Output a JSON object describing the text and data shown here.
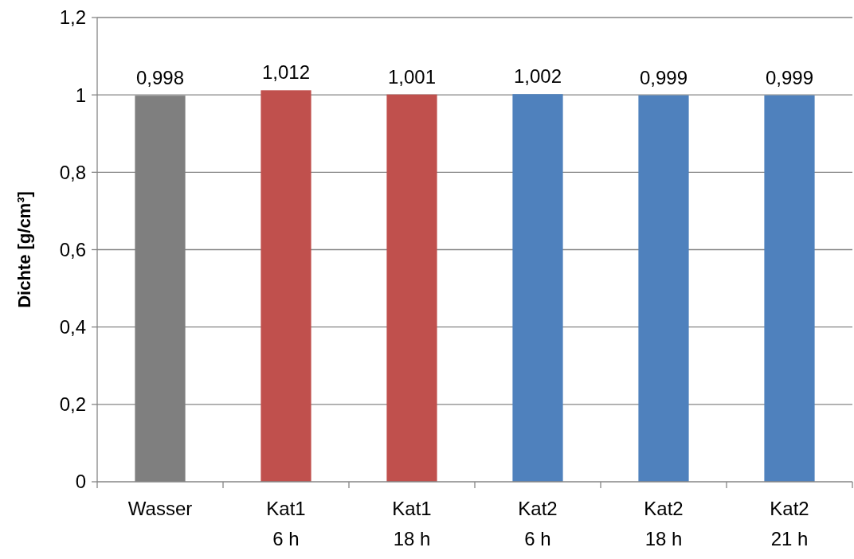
{
  "chart_data": {
    "type": "bar",
    "ylabel": "Dichte [g/cm³]",
    "categories": [
      "Wasser",
      "Kat1\n6 h",
      "Kat1\n18 h",
      "Kat2\n6 h",
      "Kat2\n18 h",
      "Kat2\n21 h"
    ],
    "values": [
      0.998,
      1.012,
      1.001,
      1.002,
      0.999,
      0.999
    ],
    "colors": [
      "#7f7f7f",
      "#c0504d",
      "#c0504d",
      "#4f81bd",
      "#4f81bd",
      "#4f81bd"
    ],
    "value_labels": [
      "0,998",
      "1,012",
      "1,001",
      "1,002",
      "0,999",
      "0,999"
    ],
    "ylim": [
      0,
      1.2
    ],
    "yticks": [
      0,
      {
        "value": 0.2,
        "label": "0,2"
      },
      {
        "value": 0.4,
        "label": "0,4"
      },
      {
        "value": 0.6,
        "label": "0,6"
      },
      {
        "value": 0.8,
        "label": "0,8"
      },
      1,
      {
        "value": 1.2,
        "label": "1,2"
      }
    ],
    "grid": "y"
  }
}
